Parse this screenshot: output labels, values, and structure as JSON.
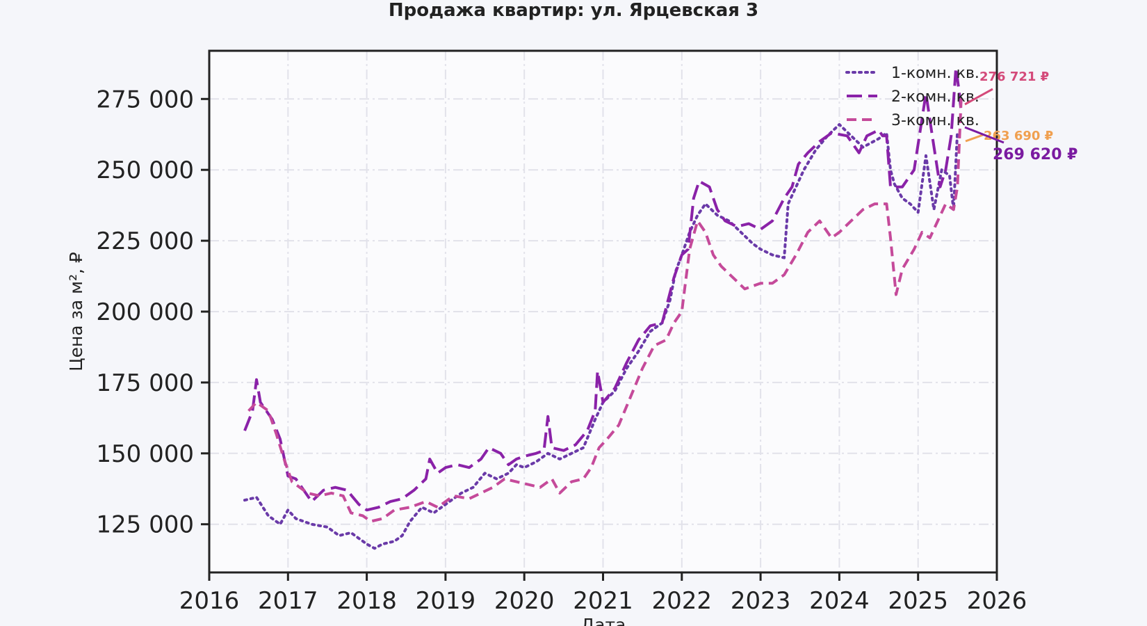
{
  "chart_data": {
    "type": "line",
    "title": "Продажа квартир: ул. Ярцевская 3",
    "xlabel": "Дата",
    "ylabel": "Цена за м², ₽",
    "xlim": [
      2016,
      2026
    ],
    "ylim": [
      108000,
      292000
    ],
    "grid": true,
    "legend_position": "top-right",
    "x_ticks": [
      "2016",
      "2017",
      "2018",
      "2019",
      "2020",
      "2021",
      "2022",
      "2023",
      "2024",
      "2025",
      "2026"
    ],
    "y_ticks": [
      {
        "value": 125000,
        "label": "125 000"
      },
      {
        "value": 150000,
        "label": "150 000"
      },
      {
        "value": 175000,
        "label": "175 000"
      },
      {
        "value": 200000,
        "label": "200 000"
      },
      {
        "value": 225000,
        "label": "225 000"
      },
      {
        "value": 250000,
        "label": "250 000"
      },
      {
        "value": 275000,
        "label": "275 000"
      }
    ],
    "series": [
      {
        "name": "1-комн. кв.",
        "color": "#6a3aa8",
        "style": "dotted",
        "points": [
          [
            2016.45,
            133500
          ],
          [
            2016.6,
            134500
          ],
          [
            2016.75,
            128000
          ],
          [
            2016.9,
            125000
          ],
          [
            2017.0,
            130000
          ],
          [
            2017.1,
            127000
          ],
          [
            2017.3,
            125000
          ],
          [
            2017.5,
            124000
          ],
          [
            2017.65,
            121000
          ],
          [
            2017.8,
            122000
          ],
          [
            2017.9,
            120000
          ],
          [
            2018.0,
            118000
          ],
          [
            2018.1,
            116500
          ],
          [
            2018.2,
            118000
          ],
          [
            2018.35,
            119000
          ],
          [
            2018.45,
            121000
          ],
          [
            2018.55,
            126000
          ],
          [
            2018.7,
            131000
          ],
          [
            2018.85,
            129000
          ],
          [
            2019.0,
            132000
          ],
          [
            2019.2,
            136000
          ],
          [
            2019.35,
            138000
          ],
          [
            2019.5,
            143000
          ],
          [
            2019.65,
            141000
          ],
          [
            2019.8,
            143000
          ],
          [
            2019.9,
            146000
          ],
          [
            2020.0,
            145000
          ],
          [
            2020.15,
            147000
          ],
          [
            2020.3,
            150000
          ],
          [
            2020.45,
            148000
          ],
          [
            2020.6,
            150000
          ],
          [
            2020.75,
            152000
          ],
          [
            2020.9,
            162000
          ],
          [
            2021.0,
            168000
          ],
          [
            2021.15,
            172000
          ],
          [
            2021.3,
            180000
          ],
          [
            2021.45,
            186000
          ],
          [
            2021.6,
            193000
          ],
          [
            2021.75,
            196000
          ],
          [
            2021.85,
            204000
          ],
          [
            2021.92,
            214000
          ],
          [
            2022.0,
            220000
          ],
          [
            2022.1,
            228000
          ],
          [
            2022.2,
            234000
          ],
          [
            2022.3,
            238000
          ],
          [
            2022.45,
            234000
          ],
          [
            2022.6,
            232000
          ],
          [
            2022.75,
            228000
          ],
          [
            2022.9,
            224000
          ],
          [
            2023.0,
            222000
          ],
          [
            2023.15,
            220000
          ],
          [
            2023.3,
            219000
          ],
          [
            2023.35,
            238000
          ],
          [
            2023.45,
            244000
          ],
          [
            2023.55,
            250000
          ],
          [
            2023.7,
            257000
          ],
          [
            2023.85,
            262000
          ],
          [
            2024.0,
            266000
          ],
          [
            2024.15,
            262000
          ],
          [
            2024.3,
            258000
          ],
          [
            2024.5,
            261000
          ],
          [
            2024.6,
            263000
          ],
          [
            2024.65,
            250000
          ],
          [
            2024.7,
            245000
          ],
          [
            2024.8,
            240000
          ],
          [
            2024.9,
            238000
          ],
          [
            2025.0,
            235000
          ],
          [
            2025.1,
            255000
          ],
          [
            2025.2,
            236000
          ],
          [
            2025.3,
            250000
          ],
          [
            2025.4,
            248000
          ],
          [
            2025.45,
            236000
          ],
          [
            2025.5,
            263690
          ]
        ]
      },
      {
        "name": "2-комн. кв.",
        "color": "#8a22a8",
        "style": "long-dash",
        "points": [
          [
            2016.45,
            158000
          ],
          [
            2016.55,
            165000
          ],
          [
            2016.6,
            176000
          ],
          [
            2016.65,
            168000
          ],
          [
            2016.8,
            162000
          ],
          [
            2016.9,
            155000
          ],
          [
            2017.0,
            142000
          ],
          [
            2017.1,
            141000
          ],
          [
            2017.3,
            133000
          ],
          [
            2017.45,
            137000
          ],
          [
            2017.6,
            138000
          ],
          [
            2017.75,
            137000
          ],
          [
            2017.9,
            132000
          ],
          [
            2018.0,
            130000
          ],
          [
            2018.15,
            131000
          ],
          [
            2018.3,
            133000
          ],
          [
            2018.45,
            134000
          ],
          [
            2018.6,
            137000
          ],
          [
            2018.75,
            141000
          ],
          [
            2018.8,
            148000
          ],
          [
            2018.9,
            143000
          ],
          [
            2019.0,
            145000
          ],
          [
            2019.15,
            146000
          ],
          [
            2019.3,
            145000
          ],
          [
            2019.45,
            148000
          ],
          [
            2019.55,
            152000
          ],
          [
            2019.7,
            150000
          ],
          [
            2019.8,
            146000
          ],
          [
            2019.9,
            148000
          ],
          [
            2020.0,
            149000
          ],
          [
            2020.15,
            150000
          ],
          [
            2020.25,
            151000
          ],
          [
            2020.3,
            163000
          ],
          [
            2020.35,
            152000
          ],
          [
            2020.5,
            151000
          ],
          [
            2020.65,
            153000
          ],
          [
            2020.8,
            158000
          ],
          [
            2020.9,
            165000
          ],
          [
            2020.93,
            179000
          ],
          [
            2021.0,
            168000
          ],
          [
            2021.15,
            173000
          ],
          [
            2021.3,
            182000
          ],
          [
            2021.45,
            190000
          ],
          [
            2021.6,
            195000
          ],
          [
            2021.75,
            196000
          ],
          [
            2021.9,
            212000
          ],
          [
            2022.0,
            220000
          ],
          [
            2022.08,
            222000
          ],
          [
            2022.15,
            240000
          ],
          [
            2022.22,
            246000
          ],
          [
            2022.35,
            244000
          ],
          [
            2022.45,
            236000
          ],
          [
            2022.55,
            232000
          ],
          [
            2022.7,
            230000
          ],
          [
            2022.85,
            231000
          ],
          [
            2023.0,
            229000
          ],
          [
            2023.15,
            232000
          ],
          [
            2023.3,
            240000
          ],
          [
            2023.4,
            244000
          ],
          [
            2023.48,
            252000
          ],
          [
            2023.6,
            256000
          ],
          [
            2023.75,
            260000
          ],
          [
            2023.9,
            263000
          ],
          [
            2024.1,
            262000
          ],
          [
            2024.25,
            256000
          ],
          [
            2024.35,
            262000
          ],
          [
            2024.5,
            264000
          ],
          [
            2024.55,
            262000
          ],
          [
            2024.6,
            262000
          ],
          [
            2024.65,
            244000
          ],
          [
            2024.8,
            244000
          ],
          [
            2024.95,
            250000
          ],
          [
            2025.05,
            268000
          ],
          [
            2025.1,
            277000
          ],
          [
            2025.18,
            262000
          ],
          [
            2025.28,
            244000
          ],
          [
            2025.35,
            250000
          ],
          [
            2025.42,
            262000
          ],
          [
            2025.48,
            286000
          ],
          [
            2025.52,
            278000
          ],
          [
            2025.55,
            269620
          ]
        ]
      },
      {
        "name": "3-комн. кв.",
        "color": "#c54a9a",
        "style": "dashed",
        "points": [
          [
            2016.5,
            165000
          ],
          [
            2016.6,
            168000
          ],
          [
            2016.75,
            165000
          ],
          [
            2016.85,
            157000
          ],
          [
            2016.95,
            148000
          ],
          [
            2017.05,
            140000
          ],
          [
            2017.25,
            136000
          ],
          [
            2017.4,
            135000
          ],
          [
            2017.55,
            136000
          ],
          [
            2017.7,
            135000
          ],
          [
            2017.8,
            129000
          ],
          [
            2017.95,
            128000
          ],
          [
            2018.05,
            126000
          ],
          [
            2018.2,
            127000
          ],
          [
            2018.35,
            130000
          ],
          [
            2018.55,
            131000
          ],
          [
            2018.75,
            133000
          ],
          [
            2018.9,
            131000
          ],
          [
            2019.1,
            135000
          ],
          [
            2019.3,
            134000
          ],
          [
            2019.45,
            136000
          ],
          [
            2019.6,
            138000
          ],
          [
            2019.75,
            141000
          ],
          [
            2019.9,
            140000
          ],
          [
            2020.05,
            139000
          ],
          [
            2020.2,
            138000
          ],
          [
            2020.35,
            141000
          ],
          [
            2020.45,
            136000
          ],
          [
            2020.6,
            140000
          ],
          [
            2020.75,
            141000
          ],
          [
            2020.85,
            145000
          ],
          [
            2020.95,
            152000
          ],
          [
            2021.05,
            155000
          ],
          [
            2021.2,
            160000
          ],
          [
            2021.35,
            170000
          ],
          [
            2021.5,
            180000
          ],
          [
            2021.65,
            188000
          ],
          [
            2021.8,
            190000
          ],
          [
            2021.9,
            196000
          ],
          [
            2022.0,
            200000
          ],
          [
            2022.1,
            222000
          ],
          [
            2022.2,
            232000
          ],
          [
            2022.3,
            228000
          ],
          [
            2022.4,
            220000
          ],
          [
            2022.5,
            216000
          ],
          [
            2022.65,
            212000
          ],
          [
            2022.8,
            208000
          ],
          [
            2023.0,
            210000
          ],
          [
            2023.15,
            210000
          ],
          [
            2023.3,
            213000
          ],
          [
            2023.45,
            220000
          ],
          [
            2023.6,
            228000
          ],
          [
            2023.75,
            232000
          ],
          [
            2023.9,
            226000
          ],
          [
            2024.0,
            228000
          ],
          [
            2024.15,
            232000
          ],
          [
            2024.3,
            236000
          ],
          [
            2024.45,
            238000
          ],
          [
            2024.6,
            238000
          ],
          [
            2024.65,
            226000
          ],
          [
            2024.72,
            206000
          ],
          [
            2024.8,
            215000
          ],
          [
            2024.95,
            222000
          ],
          [
            2025.05,
            228000
          ],
          [
            2025.15,
            226000
          ],
          [
            2025.25,
            232000
          ],
          [
            2025.35,
            238000
          ],
          [
            2025.45,
            236000
          ],
          [
            2025.5,
            244000
          ],
          [
            2025.55,
            276721
          ]
        ]
      }
    ],
    "annotations": [
      {
        "text": "276 721 ₽",
        "color": "#d44a7a",
        "y": 276721
      },
      {
        "text": "263 690 ₽",
        "color": "#f0a050",
        "y": 263690
      },
      {
        "text": "269 620 ₽",
        "color": "#7a1aa0",
        "y": 269620
      }
    ]
  }
}
